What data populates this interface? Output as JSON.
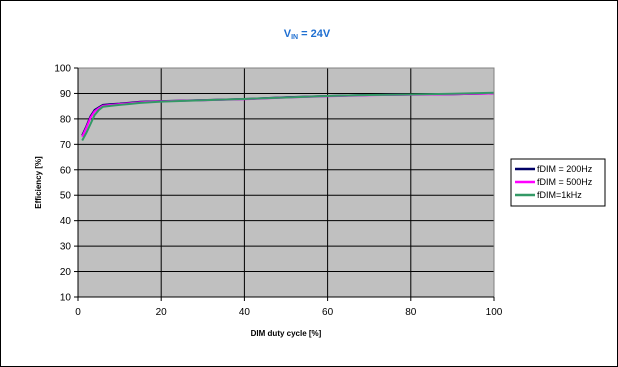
{
  "chart_data": {
    "type": "line",
    "title": {
      "main": "V",
      "sub": "IN",
      "rest": " = 24V"
    },
    "xlabel": "DIM duty cycle  [%]",
    "ylabel": "Efficiency  [%]",
    "xlim": [
      0,
      100
    ],
    "ylim": [
      10,
      100
    ],
    "xticks": [
      0,
      20,
      40,
      60,
      80,
      100
    ],
    "yticks": [
      10,
      20,
      30,
      40,
      50,
      60,
      70,
      80,
      90,
      100
    ],
    "grid": true,
    "legend_position": "right",
    "plot_background": "#c0c0c0",
    "series": [
      {
        "name": "fDIM = 200Hz",
        "color": "#000066",
        "x": [
          1,
          2,
          3,
          4,
          5,
          6,
          8,
          10,
          15,
          20,
          30,
          40,
          50,
          60,
          70,
          80,
          90,
          100
        ],
        "y": [
          73.5,
          77,
          81,
          83.5,
          84.5,
          85.5,
          85.8,
          86,
          86.7,
          87,
          87.4,
          87.8,
          88.5,
          89,
          89.4,
          89.6,
          89.7,
          90
        ]
      },
      {
        "name": "fDIM = 500Hz",
        "color": "#ff00ff",
        "x": [
          1,
          2,
          3,
          4,
          5,
          6,
          8,
          10,
          15,
          20,
          30,
          40,
          50,
          60,
          70,
          80,
          90,
          100
        ],
        "y": [
          73,
          76.5,
          80.5,
          83,
          84.2,
          85.2,
          85.5,
          85.8,
          86.5,
          86.9,
          87.3,
          87.7,
          88.4,
          88.9,
          89.3,
          89.5,
          89.7,
          90
        ]
      },
      {
        "name": "fDIM=1kHz",
        "color": "#339966",
        "x": [
          1,
          2,
          3,
          4,
          5,
          6,
          8,
          10,
          15,
          20,
          30,
          40,
          50,
          60,
          70,
          80,
          90,
          100
        ],
        "y": [
          71.5,
          74.5,
          78,
          81.5,
          83.5,
          84.8,
          85.2,
          85.5,
          86.3,
          86.8,
          87.3,
          87.8,
          88.4,
          89,
          89.4,
          89.6,
          89.9,
          90.3
        ]
      }
    ]
  }
}
